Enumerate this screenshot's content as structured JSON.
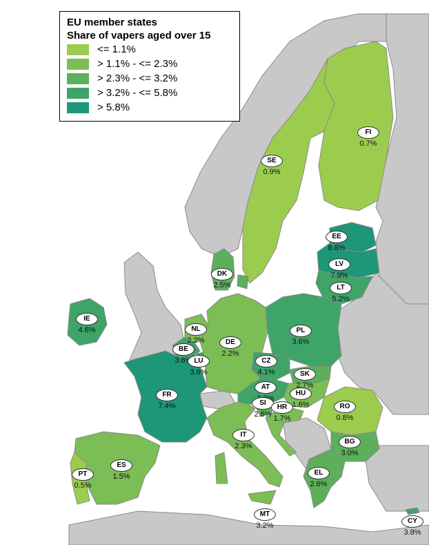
{
  "legend": {
    "title_line1": "EU member states",
    "title_line2": "Share of vapers aged over 15",
    "classes": [
      {
        "label": "<= 1.1%",
        "color": "#9ccc4e"
      },
      {
        "label": "> 1.1% - <= 2.3%",
        "color": "#7cbd55"
      },
      {
        "label": "> 2.3% - <= 3.2%",
        "color": "#5cb05c"
      },
      {
        "label": "> 3.2% - <= 5.8%",
        "color": "#3ea468"
      },
      {
        "label": "> 5.8%",
        "color": "#1e9678"
      }
    ]
  },
  "colors": {
    "background": "#ffffff",
    "non_eu": "#c8c8c8",
    "border": "#8a8a8a"
  },
  "countries": [
    {
      "code": "FI",
      "value": "0.7%",
      "class": 0
    },
    {
      "code": "SE",
      "value": "0.9%",
      "class": 0
    },
    {
      "code": "EE",
      "value": "8.8%",
      "class": 4
    },
    {
      "code": "LV",
      "value": "7.9%",
      "class": 4
    },
    {
      "code": "LT",
      "value": "5.2%",
      "class": 3
    },
    {
      "code": "DK",
      "value": "2.5%",
      "class": 2
    },
    {
      "code": "IE",
      "value": "4.6%",
      "class": 3
    },
    {
      "code": "NL",
      "value": "2.2%",
      "class": 1
    },
    {
      "code": "BE",
      "value": "3.6%",
      "class": 3
    },
    {
      "code": "LU",
      "value": "3.6%",
      "class": 3
    },
    {
      "code": "DE",
      "value": "2.2%",
      "class": 1
    },
    {
      "code": "PL",
      "value": "3.6%",
      "class": 3
    },
    {
      "code": "CZ",
      "value": "4.1%",
      "class": 3
    },
    {
      "code": "SK",
      "value": "2.7%",
      "class": 2
    },
    {
      "code": "AT",
      "value": "3.9%",
      "class": 3
    },
    {
      "code": "HU",
      "value": "1.6%",
      "class": 1
    },
    {
      "code": "SI",
      "value": "2.6%",
      "class": 2
    },
    {
      "code": "HR",
      "value": "1.7%",
      "class": 1
    },
    {
      "code": "FR",
      "value": "7.4%",
      "class": 4
    },
    {
      "code": "RO",
      "value": "0.8%",
      "class": 0
    },
    {
      "code": "IT",
      "value": "2.3%",
      "class": 1
    },
    {
      "code": "BG",
      "value": "3.0%",
      "class": 2
    },
    {
      "code": "ES",
      "value": "1.5%",
      "class": 1
    },
    {
      "code": "PT",
      "value": "0.5%",
      "class": 0
    },
    {
      "code": "EL",
      "value": "2.6%",
      "class": 2
    },
    {
      "code": "MT",
      "value": "3.2%",
      "class": 2
    },
    {
      "code": "CY",
      "value": "3.8%",
      "class": 3
    }
  ]
}
